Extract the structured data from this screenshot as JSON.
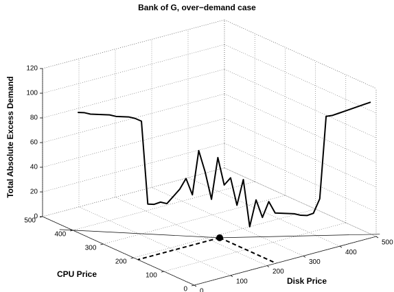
{
  "chart_data": {
    "type": "line3d",
    "title": "Bank of G, over−demand case",
    "xlabel": "CPU Price",
    "ylabel": "Disk Price",
    "zlabel": "Total Absolute Excess Demand",
    "x": [
      420,
      411,
      402,
      393,
      384,
      375,
      366,
      357,
      348,
      339,
      330,
      321,
      312,
      303,
      294,
      285,
      276,
      267,
      258,
      249,
      240,
      231,
      222,
      213,
      204,
      195,
      186,
      177,
      168,
      159,
      150,
      141,
      132,
      123,
      114,
      105,
      96,
      87,
      78,
      69,
      60,
      51,
      42,
      33,
      24,
      15,
      6
    ],
    "y": [
      30,
      40,
      50,
      60,
      70,
      80,
      90,
      100,
      110,
      120,
      130,
      140,
      150,
      160,
      170,
      180,
      190,
      200,
      210,
      220,
      230,
      240,
      250,
      260,
      270,
      280,
      290,
      300,
      310,
      320,
      330,
      340,
      350,
      360,
      370,
      380,
      390,
      400,
      410,
      420,
      430,
      440,
      450,
      460,
      470,
      480,
      490
    ],
    "z": [
      91,
      91,
      90,
      90,
      90,
      90,
      89,
      89,
      89,
      88,
      86,
      19,
      19,
      21,
      20,
      26,
      32,
      41,
      28,
      64,
      47,
      25,
      59,
      37,
      43,
      21,
      42,
      4,
      26,
      12,
      25,
      16,
      16,
      16,
      16,
      15,
      15,
      17,
      29,
      96,
      97,
      99,
      101,
      103,
      105,
      107,
      109
    ],
    "color": "#000000",
    "point": {
      "x": 186,
      "y": 225,
      "z": 0
    },
    "xlim": [
      0,
      500
    ],
    "xticks": [
      0,
      100,
      200,
      300,
      400,
      500
    ],
    "ylim": [
      0,
      500
    ],
    "yticks": [
      0,
      100,
      200,
      300,
      400,
      500
    ],
    "zlim": [
      0,
      120
    ],
    "zticks": [
      0,
      20,
      40,
      60,
      80,
      100,
      120
    ],
    "grid": true
  }
}
